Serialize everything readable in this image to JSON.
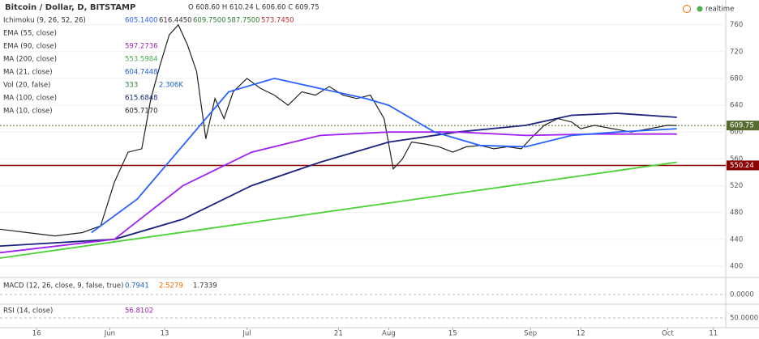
{
  "header": {
    "title": "Bitcoin / Dollar, D, BITSTAMP",
    "ohlc": "O 608.60 H 610.24 L 606.60 C 609.75",
    "realtime": "realtime"
  },
  "indicators": [
    {
      "label": "Ichimoku (9, 26, 52, 26)",
      "values": [
        {
          "text": "605.1400",
          "color": "#2962ff"
        },
        {
          "text": "616.4450",
          "color": "#333"
        },
        {
          "text": "609.7500",
          "color": "#2e7d32"
        },
        {
          "text": "587.7500",
          "color": "#2e7d32"
        },
        {
          "text": "573.7450",
          "color": "#c62828"
        }
      ]
    },
    {
      "label": "EMA (55, close)",
      "values": []
    },
    {
      "label": "EMA (90, close)",
      "values": [
        {
          "text": "597.2736",
          "color": "#9c27b0"
        }
      ]
    },
    {
      "label": "MA (200, close)",
      "values": [
        {
          "text": "553.5984",
          "color": "#4caf50"
        }
      ]
    },
    {
      "label": "MA (21, close)",
      "values": [
        {
          "text": "604.7448",
          "color": "#1e5bd6"
        }
      ]
    },
    {
      "label": "Vol (20, false)",
      "values": [
        {
          "text": "333",
          "color": "#2e7d32"
        },
        {
          "text": "2.306K",
          "color": "#1565c0"
        }
      ]
    },
    {
      "label": "MA (100, close)",
      "values": [
        {
          "text": "615.6848",
          "color": "#1a237e"
        }
      ]
    },
    {
      "label": "MA (10, close)",
      "values": [
        {
          "text": "605.7170",
          "color": "#222"
        }
      ]
    }
  ],
  "macd": {
    "label": "MACD (12, 26, close, 9, false, true)",
    "values": [
      {
        "text": "0.7941",
        "color": "#1565c0"
      },
      {
        "text": "2.5279",
        "color": "#ef6c00"
      },
      {
        "text": "1.7339",
        "color": "#333"
      }
    ],
    "ytick": {
      "value": 0,
      "label": "0.0000"
    }
  },
  "rsi": {
    "label": "RSI (14, close)",
    "values": [
      {
        "text": "56.8102",
        "color": "#9c27b0"
      }
    ],
    "ytick": {
      "value": 50,
      "label": "50.0000"
    }
  },
  "chart_data": {
    "type": "line",
    "xlim": [
      0,
      158.7
    ],
    "xticks": [
      {
        "value": 8,
        "label": "16"
      },
      {
        "value": 24,
        "label": "Jun"
      },
      {
        "value": 36,
        "label": "13"
      },
      {
        "value": 54,
        "label": "Jul"
      },
      {
        "value": 74,
        "label": "21"
      },
      {
        "value": 85,
        "label": "Aug"
      },
      {
        "value": 99,
        "label": "15"
      },
      {
        "value": 116,
        "label": "Sep"
      },
      {
        "value": 127,
        "label": "12"
      },
      {
        "value": 146,
        "label": "Oct"
      },
      {
        "value": 156,
        "label": "11"
      }
    ],
    "ylim": [
      383,
      797
    ],
    "yticks": [
      400,
      440,
      480,
      520,
      560,
      600,
      640,
      680,
      720,
      760
    ],
    "hlines": [
      {
        "value": 609.75,
        "color": "#556b2f"
      },
      {
        "value": 550.24,
        "color": "#8b0000"
      }
    ],
    "series": [
      {
        "name": "Price",
        "color": "#222",
        "x": [
          0,
          6,
          12,
          18,
          22,
          25,
          28,
          31,
          33,
          35,
          37,
          39,
          41,
          43,
          45,
          47,
          49,
          51,
          54,
          57,
          60,
          63,
          66,
          69,
          72,
          75,
          78,
          81,
          84,
          86,
          88,
          90,
          93,
          96,
          99,
          102,
          105,
          108,
          111,
          114,
          116,
          119,
          122,
          125,
          127,
          130,
          134,
          138,
          142,
          146,
          148
        ],
        "values": [
          455,
          450,
          445,
          450,
          460,
          525,
          570,
          575,
          650,
          700,
          745,
          760,
          730,
          690,
          590,
          650,
          620,
          660,
          680,
          665,
          655,
          640,
          660,
          655,
          668,
          655,
          650,
          655,
          620,
          545,
          560,
          585,
          582,
          578,
          570,
          578,
          580,
          575,
          578,
          575,
          590,
          610,
          620,
          615,
          605,
          610,
          605,
          600,
          605,
          610,
          609.75
        ]
      },
      {
        "name": "MA (200, close)",
        "color": "#4cd137",
        "x": [
          0,
          148
        ],
        "values": [
          412,
          555
        ]
      },
      {
        "name": "MA (100, close)",
        "color": "#1a237e",
        "x": [
          0,
          25,
          40,
          55,
          70,
          85,
          100,
          115,
          125,
          135,
          148
        ],
        "values": [
          430,
          440,
          470,
          520,
          555,
          585,
          600,
          610,
          625,
          628,
          622
        ]
      },
      {
        "name": "EMA (90, close)",
        "color": "#a020f0",
        "x": [
          0,
          25,
          40,
          55,
          70,
          85,
          100,
          115,
          130,
          148
        ],
        "values": [
          420,
          440,
          520,
          570,
          595,
          600,
          600,
          595,
          597,
          597
        ]
      },
      {
        "name": "MA (21, close)",
        "color": "#2962ff",
        "x": [
          20,
          30,
          40,
          50,
          60,
          70,
          80,
          85,
          95,
          105,
          115,
          125,
          135,
          148
        ],
        "values": [
          450,
          500,
          580,
          660,
          680,
          665,
          650,
          640,
          600,
          580,
          578,
          595,
          600,
          605
        ]
      }
    ]
  }
}
